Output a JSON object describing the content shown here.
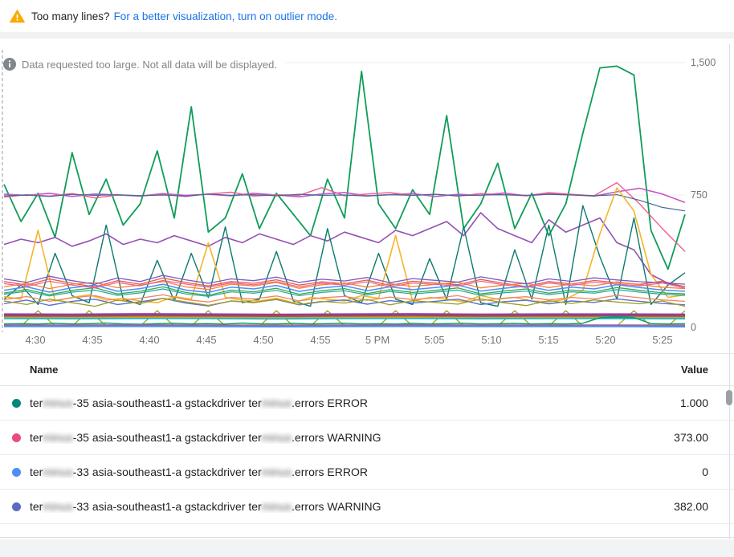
{
  "banner": {
    "warning_icon": "warning-triangle",
    "text": "Too many lines?",
    "link": "For a better visualization, turn on outlier mode."
  },
  "info": {
    "icon": "info-circle",
    "message": "Data requested too large. Not all data will be displayed."
  },
  "legend": {
    "header": {
      "name": "Name",
      "value": "Value"
    },
    "rows": [
      {
        "dot_color": "#00897b",
        "pre": "ter",
        "blur1": "minus",
        "mid": "-35 asia-southeast1-a gstackdriver ter",
        "blur2": "minus",
        "post": ".errors ERROR",
        "value": "1.000"
      },
      {
        "dot_color": "#ea4c7d",
        "pre": "ter",
        "blur1": "minus",
        "mid": "-35 asia-southeast1-a gstackdriver ter",
        "blur2": "minus",
        "post": ".errors WARNING",
        "value": "373.00"
      },
      {
        "dot_color": "#4e8df5",
        "pre": "ter",
        "blur1": "minus",
        "mid": "-33 asia-southeast1-a gstackdriver ter",
        "blur2": "minus",
        "post": ".errors ERROR",
        "value": "0"
      },
      {
        "dot_color": "#5c6bc0",
        "pre": "ter",
        "blur1": "minus",
        "mid": "-33 asia-southeast1-a gstackdriver ter",
        "blur2": "minus",
        "post": ".errors WARNING",
        "value": "382.00"
      }
    ]
  },
  "chart_data": {
    "type": "line",
    "title": "",
    "xlabel": "",
    "ylabel": "",
    "x_axis": {
      "ticks": [
        "4:30",
        "4:35",
        "4:40",
        "4:45",
        "4:50",
        "4:55",
        "5 PM",
        "5:05",
        "5:10",
        "5:15",
        "5:20",
        "5:25"
      ]
    },
    "y_axis": {
      "ticks": [
        "1,500",
        "750",
        "0"
      ],
      "min": 0,
      "max": 1500
    },
    "grid": true,
    "legend_position": "bottom-table",
    "series": [
      {
        "name": "line-green-high",
        "color": "#0f9d58",
        "width": 1.8,
        "values": [
          810,
          600,
          760,
          510,
          990,
          640,
          840,
          580,
          700,
          1000,
          620,
          1250,
          540,
          620,
          870,
          560,
          760,
          640,
          520,
          840,
          620,
          1450,
          700,
          560,
          780,
          640,
          1200,
          560,
          700,
          930,
          560,
          760,
          520,
          700,
          1100,
          1470,
          1480,
          1430,
          550,
          330,
          640
        ]
      },
      {
        "name": "line-magenta",
        "color": "#c558c9",
        "width": 1.6,
        "values": [
          755,
          748,
          760,
          742,
          756,
          750,
          744,
          758,
          748,
          754,
          746,
          760,
          750,
          740,
          756,
          764,
          746,
          752,
          758,
          742,
          754,
          748,
          762,
          746,
          756,
          752,
          744,
          768,
          788,
          756,
          708
        ]
      },
      {
        "name": "line-pink",
        "color": "#f25d8e",
        "width": 1.4,
        "values": [
          738,
          752,
          744,
          758,
          734,
          750,
          746,
          754,
          742,
          756,
          766,
          744,
          752,
          748,
          792,
          746,
          756,
          764,
          748,
          754,
          744,
          758,
          752,
          746,
          764,
          754,
          746,
          820,
          700,
          560,
          430
        ]
      },
      {
        "name": "line-slate",
        "color": "#436a93",
        "width": 1.2,
        "values": [
          745,
          750,
          742,
          754,
          748,
          752,
          746,
          750,
          744,
          756,
          748,
          752,
          746,
          754,
          748,
          750,
          744,
          752,
          748,
          754,
          746,
          750,
          752,
          748,
          754,
          750,
          746,
          752,
          720,
          680,
          660
        ]
      },
      {
        "name": "line-purple",
        "color": "#9551b5",
        "width": 1.6,
        "values": [
          470,
          500,
          480,
          510,
          460,
          490,
          530,
          470,
          500,
          480,
          520,
          490,
          460,
          510,
          480,
          530,
          500,
          470,
          520,
          490,
          540,
          510,
          480,
          550,
          520,
          560,
          600,
          520,
          650,
          560,
          520,
          480,
          610,
          540,
          580,
          620,
          480,
          440,
          300,
          250,
          230
        ]
      },
      {
        "name": "line-teal-dark",
        "color": "#0d7a6e",
        "width": 1.4,
        "values": [
          160,
          240,
          130,
          420,
          180,
          140,
          580,
          160,
          130,
          380,
          150,
          420,
          170,
          570,
          140,
          160,
          430,
          150,
          120,
          560,
          180,
          140,
          420,
          160,
          130,
          390,
          160,
          570,
          140,
          120,
          440,
          160,
          580,
          130,
          690,
          400,
          160,
          620,
          130,
          240,
          310
        ]
      },
      {
        "name": "line-yellow",
        "color": "#f5b42a",
        "width": 1.6,
        "values": [
          175,
          160,
          550,
          150,
          170,
          185,
          155,
          165,
          150,
          140,
          175,
          160,
          480,
          170,
          155,
          150,
          165,
          140,
          170,
          160,
          150,
          180,
          165,
          520,
          150,
          170,
          160,
          145,
          180,
          160,
          170,
          150,
          145,
          160,
          210,
          530,
          790,
          660,
          300,
          170,
          185
        ]
      },
      {
        "name": "line-olive-spikes",
        "color": "#a5a21b",
        "width": 1.3,
        "values": [
          8,
          8,
          95,
          8,
          8,
          95,
          8,
          8,
          8,
          95,
          8,
          8,
          95,
          8,
          8,
          8,
          95,
          8,
          8,
          95,
          8,
          8,
          8,
          95,
          8,
          8,
          95,
          8,
          8,
          8,
          95,
          8,
          8,
          95,
          8,
          8,
          8,
          95,
          8,
          8,
          95
        ]
      },
      {
        "name": "line-red",
        "color": "#e25a47",
        "width": 1.3,
        "values": [
          260,
          240,
          275,
          250,
          230,
          265,
          245,
          280,
          255,
          235,
          260,
          250,
          270,
          240,
          258,
          248,
          268,
          238,
          262,
          252,
          242,
          272,
          250,
          232,
          260,
          246,
          266,
          254,
          244,
          262,
          230
        ]
      },
      {
        "name": "line-orange",
        "color": "#f58238",
        "width": 1.3,
        "values": [
          230,
          250,
          220,
          245,
          255,
          225,
          240,
          260,
          230,
          215,
          245,
          235,
          255,
          222,
          242,
          252,
          228,
          248,
          232,
          244,
          256,
          224,
          240,
          250,
          226,
          246,
          236,
          258,
          242,
          228,
          220
        ]
      },
      {
        "name": "line-blue",
        "color": "#4e8df5",
        "width": 1.5,
        "values": [
          210,
          230,
          200,
          225,
          240,
          205,
          220,
          245,
          212,
          198,
          228,
          218,
          238,
          204,
          224,
          236,
          208,
          230,
          214,
          226,
          240,
          206,
          222,
          234,
          210,
          228,
          218,
          242,
          226,
          212,
          205
        ]
      },
      {
        "name": "line-green-mid",
        "color": "#33a852",
        "width": 1.3,
        "values": [
          195,
          215,
          185,
          210,
          225,
          190,
          205,
          230,
          198,
          182,
          212,
          202,
          222,
          188,
          208,
          220,
          192,
          214,
          198,
          210,
          224,
          190,
          206,
          218,
          194,
          212,
          202,
          226,
          210,
          196,
          190
        ]
      },
      {
        "name": "line-violet",
        "color": "#7e57c2",
        "width": 1.3,
        "values": [
          275,
          255,
          290,
          265,
          245,
          280,
          260,
          295,
          270,
          250,
          275,
          265,
          285,
          255,
          273,
          263,
          283,
          253,
          277,
          267,
          257,
          287,
          265,
          247,
          275,
          261,
          281,
          269,
          259,
          254,
          245
        ]
      },
      {
        "name": "line-rose",
        "color": "#ec6090",
        "width": 1.2,
        "values": [
          248,
          232,
          262,
          240,
          224,
          254,
          236,
          266,
          246,
          228,
          252,
          242,
          260,
          230,
          250,
          240,
          258,
          230,
          252,
          244,
          234,
          262,
          242,
          226,
          252,
          238,
          256,
          246,
          236,
          252,
          222
        ]
      },
      {
        "name": "line-teal-light",
        "color": "#26a69a",
        "width": 1.2,
        "values": [
          188,
          205,
          178,
          200,
          212,
          182,
          196,
          218,
          190,
          176,
          202,
          194,
          210,
          180,
          198,
          208,
          184,
          204,
          190,
          200,
          212,
          182,
          196,
          206,
          186,
          202,
          194,
          214,
          200,
          188,
          182
        ]
      },
      {
        "name": "line-indigo-low",
        "color": "#5b72c9",
        "width": 1.4,
        "values": [
          135,
          155,
          125,
          148,
          160,
          130,
          145,
          165,
          138,
          122,
          150,
          142,
          158,
          128,
          146,
          156,
          132,
          152,
          138,
          148,
          160,
          130,
          146,
          154,
          134,
          150,
          142,
          162,
          148,
          136,
          128
        ]
      },
      {
        "name": "line-salmon",
        "color": "#ef8566",
        "width": 1.3,
        "values": [
          158,
          175,
          148,
          168,
          180,
          152,
          166,
          185,
          158,
          144,
          170,
          162,
          178,
          150,
          168,
          176,
          154,
          172,
          158,
          168,
          180,
          152,
          166,
          174,
          156,
          170,
          162,
          182,
          168,
          156,
          148
        ]
      },
      {
        "name": "line-olive-low",
        "color": "#9e9d24",
        "width": 1.3,
        "values": [
          150,
          130,
          160,
          140,
          120,
          155,
          135,
          165,
          145,
          125,
          150,
          140,
          160,
          130,
          148,
          138,
          158,
          128,
          152,
          142,
          132,
          162,
          140,
          124,
          152,
          136,
          156,
          144,
          134,
          150,
          120
        ]
      },
      {
        "name": "line-flat-purple",
        "color": "#9334e6",
        "width": 1.4,
        "values": [
          77,
          76,
          78,
          77,
          75,
          77,
          78,
          76,
          77,
          77,
          76
        ]
      },
      {
        "name": "line-flat-red",
        "color": "#d93025",
        "width": 2,
        "values": [
          72,
          71,
          73,
          72,
          70,
          72,
          73,
          71,
          72,
          72,
          71
        ]
      },
      {
        "name": "line-flat-blue",
        "color": "#1a73e8",
        "width": 2,
        "values": [
          64,
          63,
          65,
          64,
          62,
          64,
          65,
          63,
          64,
          64,
          63
        ]
      },
      {
        "name": "line-flat-orange",
        "color": "#f29900",
        "width": 2,
        "values": [
          57,
          56,
          58,
          57,
          55,
          57,
          58,
          56,
          57,
          57,
          56
        ]
      },
      {
        "name": "line-flat-cyan",
        "color": "#12b5cb",
        "width": 1.6,
        "values": [
          50,
          49,
          51,
          50,
          48,
          50,
          51,
          49,
          50,
          50,
          49
        ]
      },
      {
        "name": "line-green-base",
        "color": "#0f9d58",
        "width": 1.5,
        "values": [
          20,
          22,
          19,
          24,
          20,
          22,
          25,
          20,
          18,
          22,
          24,
          20,
          22,
          19,
          25,
          21,
          20,
          23,
          20,
          22,
          24,
          20,
          21,
          19,
          23,
          20,
          22,
          24,
          20,
          21,
          23,
          20,
          22,
          20,
          24,
          55,
          58,
          56,
          22,
          20,
          21
        ]
      },
      {
        "name": "line-bottom-red",
        "color": "#e8453c",
        "width": 1.4,
        "values": [
          14,
          14,
          15,
          14,
          13,
          14,
          15,
          14,
          14,
          14,
          13
        ]
      },
      {
        "name": "line-bottom-orange",
        "color": "#fa903e",
        "width": 1.2,
        "values": [
          11,
          11,
          12,
          11,
          10,
          11,
          12,
          11,
          11,
          11,
          10
        ]
      },
      {
        "name": "line-bottom-blue",
        "color": "#4285f4",
        "width": 2.4,
        "values": [
          8,
          8,
          9,
          8,
          7,
          8,
          9,
          8,
          8,
          8,
          7
        ]
      }
    ]
  }
}
